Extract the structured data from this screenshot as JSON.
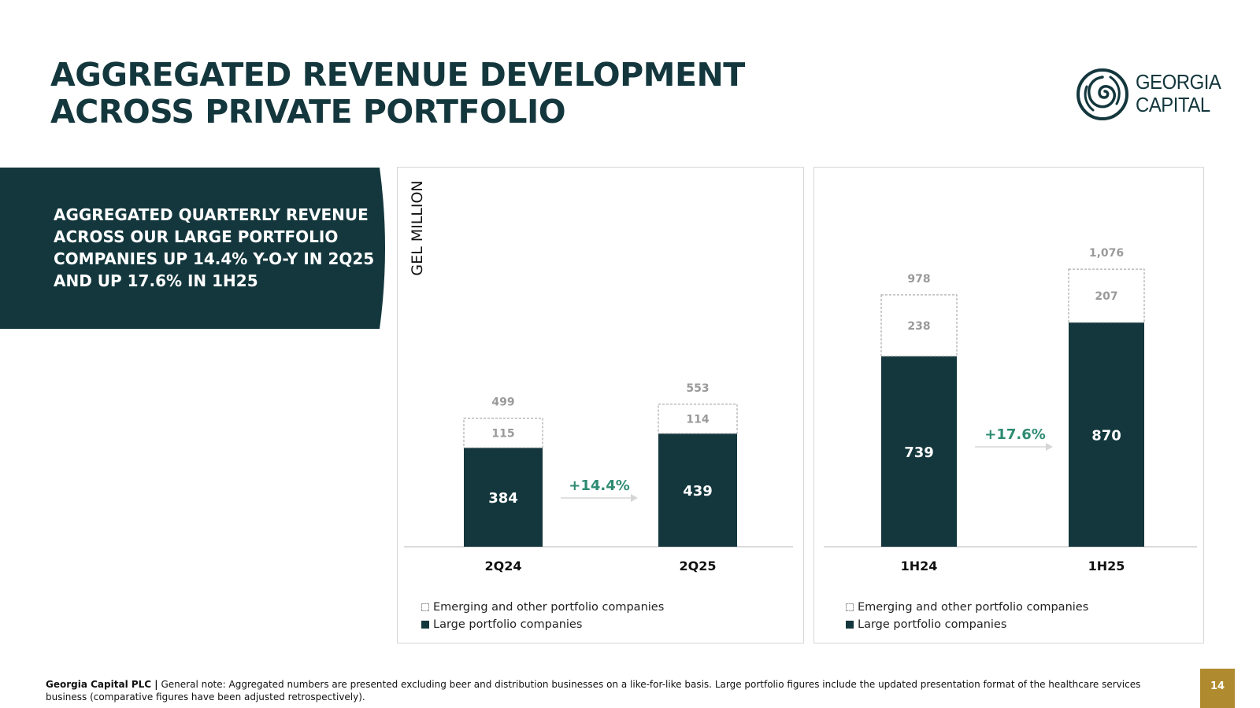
{
  "header": {
    "title_line1": "AGGREGATED REVENUE DEVELOPMENT",
    "title_line2": "ACROSS PRIVATE PORTFOLIO"
  },
  "logo": {
    "line1": "GEORGIA",
    "line2": "CAPITAL"
  },
  "callout": {
    "text": "AGGREGATED QUARTERLY REVENUE ACROSS OUR LARGE PORTFOLIO COMPANIES UP 14.4% Y-O-Y IN 2Q25 AND UP 17.6% IN 1H25"
  },
  "colors": {
    "dark": "#13373d",
    "growth": "#2e8b72",
    "muted": "#9a9a9a",
    "gold": "#b08a2e"
  },
  "chart_data": [
    {
      "type": "bar",
      "stacked": true,
      "ylabel": "GEL MILLION",
      "categories": [
        "2Q24",
        "2Q25"
      ],
      "series": [
        {
          "name": "Large portfolio companies",
          "values": [
            384,
            439
          ]
        },
        {
          "name": "Emerging and other portfolio companies",
          "values": [
            115,
            114
          ]
        }
      ],
      "totals": [
        "499",
        "553"
      ],
      "large_labels": [
        "384",
        "439"
      ],
      "emerging_labels": [
        "115",
        "114"
      ],
      "growth_label": "+14.4%",
      "legend": [
        "Emerging and other portfolio companies",
        "Large portfolio companies"
      ],
      "ylim": [
        0,
        1150
      ]
    },
    {
      "type": "bar",
      "stacked": true,
      "categories": [
        "1H24",
        "1H25"
      ],
      "series": [
        {
          "name": "Large portfolio companies",
          "values": [
            739,
            870
          ]
        },
        {
          "name": "Emerging and other portfolio companies",
          "values": [
            238,
            207
          ]
        }
      ],
      "totals": [
        "978",
        "1,076"
      ],
      "large_labels": [
        "739",
        "870"
      ],
      "emerging_labels": [
        "238",
        "207"
      ],
      "growth_label": "+17.6%",
      "legend": [
        "Emerging and other portfolio companies",
        "Large portfolio companies"
      ],
      "ylim": [
        0,
        1150
      ]
    }
  ],
  "footer": {
    "company": "Georgia Capital PLC |",
    "note": "General note: Aggregated numbers are presented excluding beer and distribution businesses on a like-for-like basis. Large portfolio figures include the updated presentation format of the healthcare services business (comparative figures have been adjusted retrospectively).",
    "page": "14"
  }
}
